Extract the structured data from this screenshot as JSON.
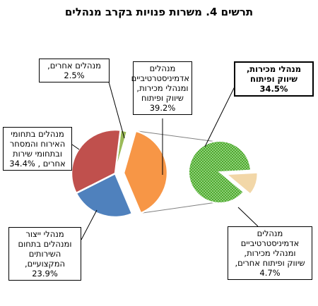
{
  "title": "תרשים 4. משרות פנויות בקרב מנהלים",
  "chart_data": {
    "type": "pie",
    "subtype": "pie-of-pie",
    "main_pie": [
      {
        "label": "מנהלים אחרים,\n2.5%",
        "value": 2.5,
        "color": "#9BBB59"
      },
      {
        "label": "מנהלים\nאדמיניסטרטיביים\nומנהלי מכירות,\nשיווק ופיתוח\n39.2%",
        "value": 39.2,
        "color": "#F79646",
        "exploded": true
      },
      {
        "label": "מנהלי ייצור\nומנהלים בתחום\nהשירותים\nהמקצועיים,\n23.9%",
        "value": 23.9,
        "color": "#4F81BD"
      },
      {
        "label": "מנהלים בתחומי\nהאירוח והמסחר\nובתחומי שירות\nאחרים , 34.4%",
        "value": 34.4,
        "color": "#C0504D"
      }
    ],
    "secondary_pie": [
      {
        "label": "מנהלי מכירות,\nשיווק ופיתוח\n34.5%",
        "value": 34.5,
        "color": "#4EA72E",
        "pattern": "checker",
        "bold": true
      },
      {
        "label": "מנהלים\nאדמיניסטרטיביים\nומנהלי מכירות,\nשיווק ופיתוח אחרים,\n4.7%",
        "value": 4.7,
        "color": "#F2D7A8",
        "exploded": true
      }
    ]
  }
}
